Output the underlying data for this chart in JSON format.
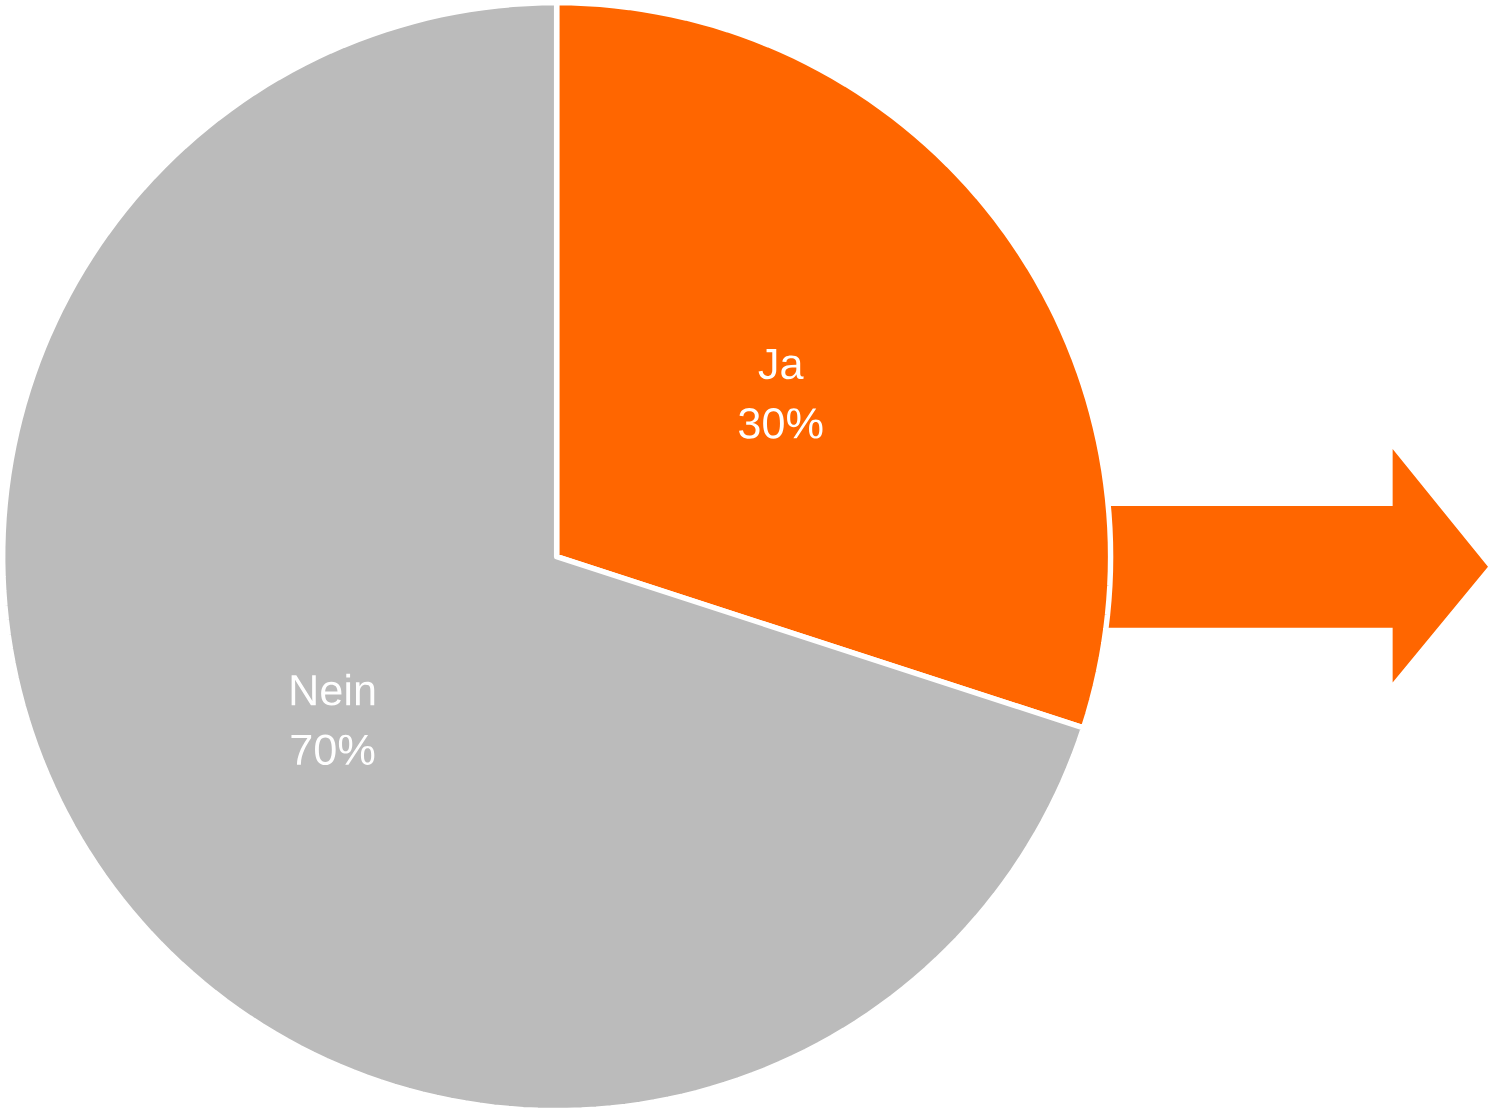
{
  "chart_data": {
    "type": "pie",
    "categories": [
      "Ja",
      "Nein"
    ],
    "values": [
      30,
      70
    ],
    "value_labels": [
      "30%",
      "70%"
    ],
    "colors": [
      "#ff6600",
      "#bbbbbb"
    ]
  }
}
